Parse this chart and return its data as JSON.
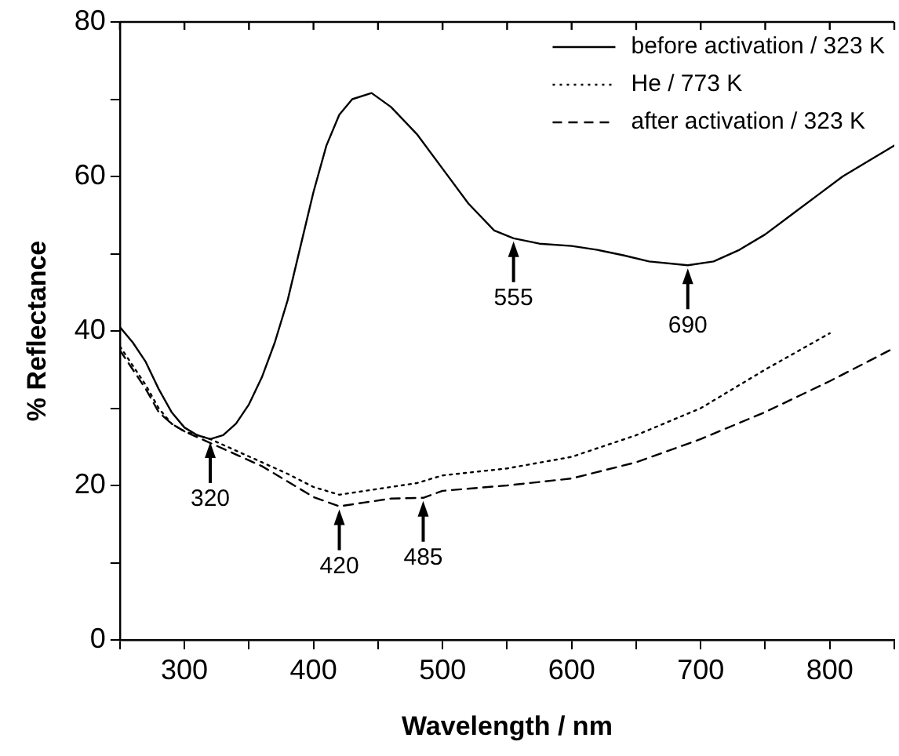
{
  "chart_data": {
    "type": "line",
    "xlabel": "Wavelength / nm",
    "ylabel": "% Reflectance",
    "xlim": [
      250,
      850
    ],
    "ylim": [
      0,
      80
    ],
    "xticks": [
      {
        "value": 250,
        "label": null
      },
      300,
      {
        "value": 350,
        "label": null
      },
      400,
      {
        "value": 450,
        "label": null
      },
      500,
      {
        "value": 550,
        "label": null
      },
      600,
      {
        "value": 650,
        "label": null
      },
      700,
      {
        "value": 750,
        "label": null
      },
      800,
      {
        "value": 850,
        "label": null
      }
    ],
    "yticks": [
      0,
      {
        "value": 10,
        "label": null
      },
      20,
      {
        "value": 30,
        "label": null
      },
      40,
      {
        "value": 50,
        "label": null
      },
      60,
      {
        "value": 70,
        "label": null
      },
      80
    ],
    "grid": false,
    "legend": "top right",
    "marker": "none",
    "series": [
      {
        "name": "before activation / 323 K",
        "color": "#000000",
        "line_style": "solid",
        "x": [
          250,
          260,
          270,
          280,
          290,
          300,
          310,
          320,
          330,
          340,
          350,
          360,
          370,
          380,
          390,
          400,
          410,
          420,
          430,
          445,
          460,
          480,
          500,
          520,
          540,
          555,
          575,
          600,
          620,
          640,
          660,
          690,
          710,
          730,
          750,
          770,
          790,
          810,
          830,
          845,
          850
        ],
        "values": [
          40.5,
          38.5,
          36,
          32.5,
          29.5,
          27.5,
          26.5,
          26,
          26.5,
          28,
          30.5,
          34,
          38.5,
          44,
          51,
          58,
          64,
          68,
          70,
          70.8,
          69,
          65.5,
          61,
          56.5,
          53,
          52,
          51.3,
          51,
          50.5,
          49.8,
          49,
          48.5,
          49,
          50.5,
          52.5,
          55,
          57.5,
          60,
          62,
          63.5,
          64
        ]
      },
      {
        "name": "He / 773 K",
        "color": "#000000",
        "line_style": "dotted",
        "x": [
          250,
          260,
          270,
          280,
          290,
          300,
          320,
          340,
          360,
          380,
          400,
          420,
          440,
          460,
          480,
          500,
          550,
          600,
          650,
          700,
          750,
          800
        ],
        "values": [
          38,
          35.5,
          33,
          30,
          28,
          27,
          26,
          24.5,
          23,
          21.5,
          19.8,
          18.8,
          19.3,
          19.8,
          20.3,
          21.3,
          22.2,
          23.7,
          26.5,
          30,
          35,
          39.7
        ]
      },
      {
        "name": "after activation / 323 K",
        "color": "#000000",
        "line_style": "dashed",
        "x": [
          250,
          260,
          270,
          280,
          290,
          300,
          320,
          340,
          360,
          380,
          400,
          420,
          440,
          460,
          485,
          500,
          550,
          600,
          650,
          700,
          750,
          800,
          850
        ],
        "values": [
          37.5,
          35,
          32.5,
          29.5,
          28,
          27,
          25.5,
          24,
          22.5,
          20.5,
          18.5,
          17.3,
          17.8,
          18.3,
          18.4,
          19.3,
          20,
          20.9,
          23,
          26,
          29.5,
          33.5,
          37.8
        ]
      }
    ],
    "annotations": [
      {
        "text": "320",
        "x": 320,
        "y": 26
      },
      {
        "text": "420",
        "x": 420,
        "y": 17.3
      },
      {
        "text": "485",
        "x": 485,
        "y": 18.4
      },
      {
        "text": "555",
        "x": 555,
        "y": 52
      },
      {
        "text": "690",
        "x": 690,
        "y": 48.5
      }
    ]
  }
}
